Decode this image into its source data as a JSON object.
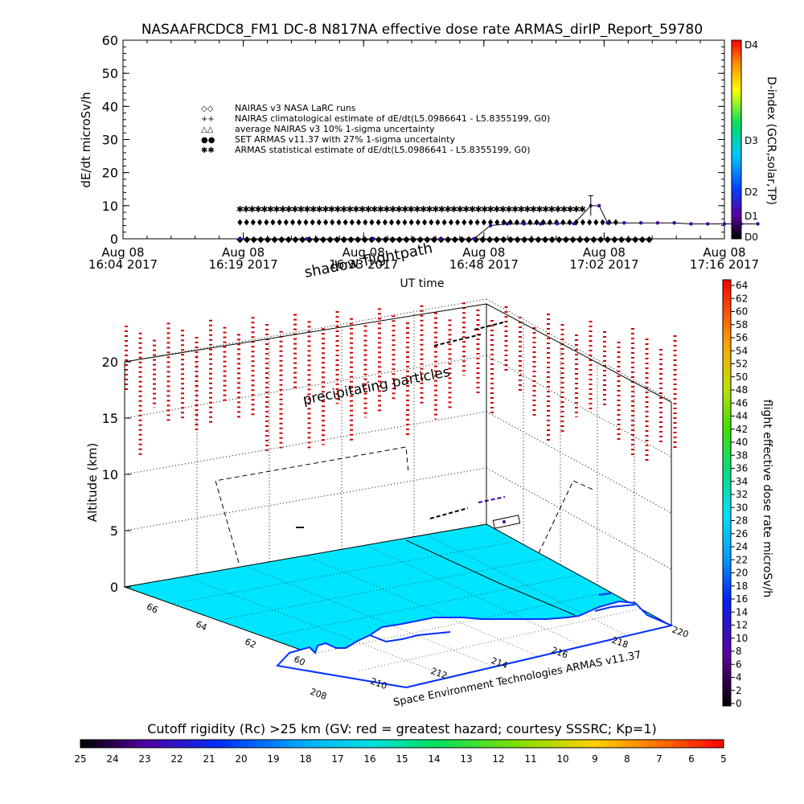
{
  "title": "NASAAFRCDC8_FM1 DC-8   N817NA effective dose rate ARMAS_dirIP_Report_59780",
  "top_chart": {
    "ylabel": "dE/dt microSv/h",
    "xlabel": "UT time",
    "ylim": [
      0,
      60
    ],
    "yticks": [
      0,
      10,
      20,
      30,
      40,
      50,
      60
    ],
    "time_ticks": [
      {
        "line1": "Aug 08",
        "line2": "16:04 2017"
      },
      {
        "line1": "Aug 08",
        "line2": "16:19 2017"
      },
      {
        "line1": "Aug 08",
        "line2": "16:33 2017"
      },
      {
        "line1": "Aug 08",
        "line2": "16:48 2017"
      },
      {
        "line1": "Aug 08",
        "line2": "17:02 2017"
      },
      {
        "line1": "Aug 08",
        "line2": "17:16 2017"
      }
    ],
    "legend": [
      {
        "sym": "◇◇",
        "label": "NAIRAS v3 NASA LaRC runs",
        "color": "#000000"
      },
      {
        "sym": "++",
        "label": "NAIRAS climatological estimate of dE/dt(L5.0986641 - L5.8355199, G0)",
        "color": "#000000"
      },
      {
        "sym": "△△",
        "label": "average NAIRAS v3 10% 1-sigma uncertainty",
        "color": "#000000"
      },
      {
        "sym": "●●",
        "label": "SET ARMAS v11.37 with 27% 1-sigma uncertainty",
        "color": "#1010c0"
      },
      {
        "sym": "✱✱",
        "label": "ARMAS statistical estimate of dE/dt(L5.0986641 - L5.8355199, G0)",
        "color": "#000000"
      }
    ],
    "colorbar": {
      "label": "D-index (GCR,solar,TP)",
      "ticks": [
        "D4",
        "D3",
        "D2",
        "D1",
        "D0"
      ]
    }
  },
  "chart_data": {
    "type": "scatter",
    "title": "NASAAFRCDC8_FM1 DC-8   N817NA effective dose rate ARMAS_dirIP_Report_59780",
    "xlabel": "UT time",
    "ylabel": "dE/dt microSv/h",
    "ylim": [
      0,
      60
    ],
    "x_range_minutes": [
      0,
      72
    ],
    "x_note_units": "minutes after 16:04 UT",
    "series": [
      {
        "name": "ARMAS statistical estimate of dE/dt(L5.0986641 - L5.8355199, G0)",
        "x_start": 14,
        "x_end": 55,
        "count": 57,
        "value": 9
      },
      {
        "name": "NAIRAS climatological estimate of dE/dt(L5.0986641 - L5.8355199, G0)",
        "x_start": 14,
        "x_end": 59,
        "count": 58,
        "value": 5
      },
      {
        "name": "NAIRAS v3 NASA LaRC runs",
        "x_start": 14,
        "x_end": 63,
        "count": 60,
        "value": 0
      },
      {
        "name": "SET ARMAS v11.37 with 27% 1-sigma uncertainty",
        "points": [
          [
            14,
            0
          ],
          [
            22,
            0
          ],
          [
            30,
            0
          ],
          [
            38,
            0
          ],
          [
            42,
            0
          ],
          [
            44,
            4
          ],
          [
            46,
            4.5
          ],
          [
            48,
            4.5
          ],
          [
            50,
            4.5
          ],
          [
            52,
            4.6
          ],
          [
            54,
            4.6
          ],
          [
            56,
            10
          ],
          [
            57,
            10
          ],
          [
            58,
            4.8
          ],
          [
            60,
            4.8
          ],
          [
            62,
            4.8
          ],
          [
            64,
            4.8
          ],
          [
            66,
            4.8
          ],
          [
            68,
            4.5
          ],
          [
            70,
            4.5
          ],
          [
            72,
            4.5
          ],
          [
            74,
            4.5
          ],
          [
            76,
            4.5
          ]
        ]
      }
    ]
  },
  "bottom_chart": {
    "ylabel": "Altitude (km)",
    "yticks": [
      0,
      5,
      10,
      15,
      20
    ],
    "lat_ticks": [
      "66",
      "64",
      "62",
      "60"
    ],
    "lon_ticks": [
      "208",
      "210",
      "212",
      "214",
      "216",
      "218",
      "220"
    ],
    "label_shadow": "shadow flightpath",
    "label_precip": "precipitating particles",
    "credit": "Space Environment Technologies ARMAS v11.37",
    "right_colorbar": {
      "label": "flight effective dose rate microSv/h",
      "ticks": [
        "64",
        "62",
        "60",
        "58",
        "56",
        "54",
        "52",
        "50",
        "48",
        "46",
        "44",
        "42",
        "40",
        "38",
        "36",
        "34",
        "32",
        "30",
        "28",
        "26",
        "24",
        "22",
        "20",
        "18",
        "16",
        "14",
        "12",
        "10",
        "8",
        "6",
        "4",
        "2",
        "0"
      ]
    },
    "bottom_colorbar": {
      "label": "Cutoff rigidity (Rc) >25 km (GV: red = greatest hazard; courtesy SSSRC; Kp=1)",
      "ticks": [
        "25",
        "24",
        "23",
        "22",
        "21",
        "20",
        "19",
        "18",
        "17",
        "16",
        "15",
        "14",
        "13",
        "12",
        "11",
        "10",
        "9",
        "8",
        "7",
        "6",
        "5"
      ]
    },
    "colors": {
      "ocean": "#00e5ff",
      "precip": "#d00000",
      "land": "#ffffff",
      "coast": "#0030ff"
    }
  }
}
